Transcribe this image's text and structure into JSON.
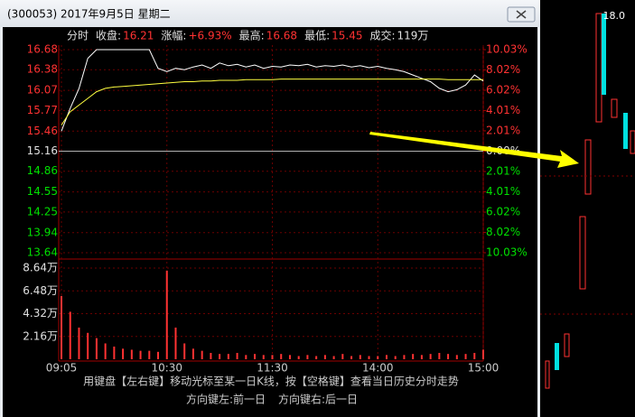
{
  "window": {
    "title": "(300053) 2017年9月5日 星期二"
  },
  "header": {
    "period": "分时",
    "close_label": "收盘:",
    "close": "16.21",
    "change_label": "涨幅:",
    "change": "+6.93%",
    "high_label": "最高:",
    "high": "16.68",
    "low_label": "最低:",
    "low": "15.45",
    "volume_label": "成交:",
    "volume": "119万"
  },
  "price_chart": {
    "type": "line",
    "x": [
      0,
      5,
      10,
      15,
      20,
      25,
      30,
      35,
      40,
      45,
      50,
      55,
      60,
      65,
      70,
      75,
      80,
      85,
      90,
      95,
      100,
      105,
      110,
      115,
      120,
      125,
      130,
      135,
      140,
      145,
      150,
      155,
      160,
      165,
      170,
      175,
      180,
      185,
      190,
      195,
      200,
      205,
      210,
      215,
      220,
      225,
      230,
      235,
      240
    ],
    "xlim": [
      0,
      240
    ],
    "xticks": [
      {
        "value": 0,
        "label": "09:05"
      },
      {
        "value": 60,
        "label": "10:30"
      },
      {
        "value": 120,
        "label": "11:30"
      },
      {
        "value": 180,
        "label": "14:00"
      },
      {
        "value": 240,
        "label": "15:00"
      }
    ],
    "ylim": [
      13.64,
      16.68
    ],
    "yticks": [
      16.68,
      16.38,
      16.07,
      15.77,
      15.46,
      15.16,
      14.86,
      14.55,
      14.25,
      13.94,
      13.64
    ],
    "y2lim": [
      -10.03,
      10.03
    ],
    "y2ticks": [
      {
        "value": 10.03,
        "label": "10.03%"
      },
      {
        "value": 8.02,
        "label": "8.02%"
      },
      {
        "value": 6.02,
        "label": "6.02%"
      },
      {
        "value": 4.01,
        "label": "4.01%"
      },
      {
        "value": 2.01,
        "label": "2.01%"
      },
      {
        "value": 0,
        "label": "0.00%"
      },
      {
        "value": -2.01,
        "label": "2.01%"
      },
      {
        "value": -4.01,
        "label": "4.01%"
      },
      {
        "value": -6.02,
        "label": "6.02%"
      },
      {
        "value": -8.02,
        "label": "8.02%"
      },
      {
        "value": -10.03,
        "label": "10.03%"
      }
    ],
    "series": [
      {
        "color": "#ffffff",
        "values": [
          15.46,
          15.8,
          16.1,
          16.55,
          16.68,
          16.68,
          16.68,
          16.68,
          16.68,
          16.68,
          16.68,
          16.4,
          16.35,
          16.4,
          16.38,
          16.42,
          16.45,
          16.4,
          16.48,
          16.44,
          16.46,
          16.42,
          16.45,
          16.4,
          16.43,
          16.42,
          16.45,
          16.44,
          16.46,
          16.42,
          16.44,
          16.43,
          16.45,
          16.42,
          16.44,
          16.41,
          16.43,
          16.4,
          16.38,
          16.35,
          16.3,
          16.25,
          16.2,
          16.1,
          16.05,
          16.08,
          16.15,
          16.3,
          16.21
        ]
      },
      {
        "color": "#ffff40",
        "values": [
          15.55,
          15.75,
          15.85,
          15.95,
          16.05,
          16.1,
          16.12,
          16.13,
          16.14,
          16.15,
          16.16,
          16.17,
          16.18,
          16.19,
          16.2,
          16.2,
          16.21,
          16.21,
          16.22,
          16.22,
          16.22,
          16.23,
          16.23,
          16.23,
          16.23,
          16.24,
          16.24,
          16.24,
          16.24,
          16.24,
          16.24,
          16.24,
          16.24,
          16.24,
          16.24,
          16.24,
          16.24,
          16.24,
          16.24,
          16.24,
          16.24,
          16.24,
          16.24,
          16.24,
          16.23,
          16.23,
          16.23,
          16.23,
          16.23
        ]
      }
    ]
  },
  "volume_chart": {
    "type": "bar",
    "ylim": [
      0,
      8.64
    ],
    "yticks": [
      {
        "value": 2.16,
        "label": "2.16万"
      },
      {
        "value": 4.32,
        "label": "4.32万"
      },
      {
        "value": 6.48,
        "label": "6.48万"
      },
      {
        "value": 8.64,
        "label": "8.64万"
      }
    ],
    "color": "#ff3232",
    "values": [
      6.0,
      4.5,
      3.0,
      2.5,
      2.0,
      1.5,
      1.2,
      1.0,
      0.9,
      0.8,
      0.8,
      0.7,
      8.4,
      3.0,
      1.5,
      1.0,
      0.8,
      0.6,
      0.5,
      0.5,
      0.6,
      0.4,
      0.5,
      0.4,
      0.4,
      0.5,
      0.4,
      0.3,
      0.4,
      0.3,
      0.4,
      0.3,
      0.5,
      0.3,
      0.4,
      0.3,
      0.3,
      0.4,
      0.3,
      0.4,
      0.5,
      0.4,
      0.5,
      0.6,
      0.5,
      0.4,
      0.5,
      0.6,
      0.9
    ]
  },
  "footer": {
    "hint": "用键盘【左右键】移动光标至某一日K线，按【空格键】查看当日历史分时走势",
    "prev": "方向键左:前一日",
    "next": "方向键右:后一日"
  }
}
